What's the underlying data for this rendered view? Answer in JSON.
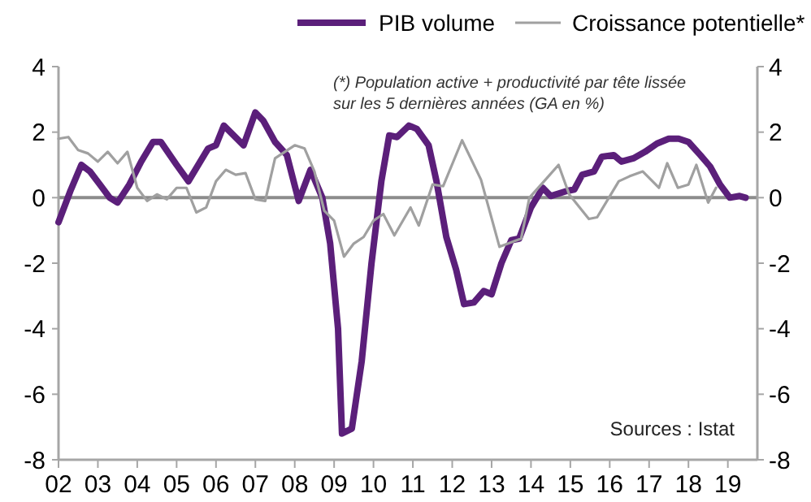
{
  "chart_data": {
    "type": "line",
    "x": [
      2002.0,
      2002.3,
      2002.58,
      2002.8,
      2003.05,
      2003.3,
      2003.5,
      2003.8,
      2004.1,
      2004.4,
      2004.6,
      2005.0,
      2005.3,
      2005.8,
      2006.0,
      2006.2,
      2006.7,
      2007.0,
      2007.2,
      2007.5,
      2007.8,
      2008.1,
      2008.4,
      2008.7,
      2008.9,
      2009.1,
      2009.2,
      2009.45,
      2009.7,
      2009.95,
      2010.2,
      2010.4,
      2010.6,
      2010.9,
      2011.1,
      2011.4,
      2011.6,
      2011.85,
      2012.1,
      2012.3,
      2012.55,
      2012.8,
      2013.0,
      2013.25,
      2013.5,
      2013.7,
      2014.0,
      2014.3,
      2014.5,
      2014.9,
      2015.1,
      2015.3,
      2015.6,
      2015.8,
      2016.1,
      2016.3,
      2016.6,
      2016.9,
      2017.2,
      2017.5,
      2017.75,
      2018.0,
      2018.3,
      2018.55,
      2018.8,
      2019.05,
      2019.3,
      2019.45
    ],
    "series": [
      {
        "name": "PIB volume",
        "color": "#5b1f7a",
        "values": [
          -0.75,
          0.2,
          1.0,
          0.8,
          0.4,
          0.0,
          -0.15,
          0.4,
          1.1,
          1.7,
          1.7,
          1.0,
          0.5,
          1.5,
          1.6,
          2.2,
          1.6,
          2.6,
          2.35,
          1.7,
          1.3,
          -0.1,
          0.85,
          0.0,
          -1.4,
          -4.0,
          -7.2,
          -7.05,
          -5.0,
          -2.0,
          0.5,
          1.9,
          1.85,
          2.2,
          2.1,
          1.6,
          0.5,
          -1.2,
          -2.2,
          -3.25,
          -3.2,
          -2.85,
          -2.95,
          -2.0,
          -1.3,
          -1.25,
          -0.3,
          0.3,
          0.05,
          0.2,
          0.25,
          0.7,
          0.8,
          1.25,
          1.3,
          1.1,
          1.2,
          1.4,
          1.65,
          1.8,
          1.8,
          1.7,
          1.3,
          0.95,
          0.4,
          0.0,
          0.05,
          0.0
        ]
      },
      {
        "name": "Croissance potentielle*",
        "color": "#a0a0a0",
        "x": [
          2002.0,
          2002.25,
          2002.5,
          2002.75,
          2003.0,
          2003.25,
          2003.5,
          2003.75,
          2004.0,
          2004.25,
          2004.5,
          2004.75,
          2005.0,
          2005.25,
          2005.5,
          2005.75,
          2006.0,
          2006.25,
          2006.5,
          2006.75,
          2007.0,
          2007.25,
          2007.5,
          2007.75,
          2008.0,
          2008.25,
          2008.5,
          2008.75,
          2009.0,
          2009.25,
          2009.5,
          2009.75,
          2010.0,
          2010.25,
          2010.53,
          2010.94,
          2011.15,
          2011.5,
          2011.77,
          2012.25,
          2012.73,
          2013.2,
          2013.75,
          2013.96,
          2014.37,
          2014.7,
          2014.97,
          2015.47,
          2015.68,
          2016.23,
          2016.5,
          2016.84,
          2017.25,
          2017.46,
          2017.73,
          2018.0,
          2018.2,
          2018.5,
          2018.7
        ],
        "values": [
          1.8,
          1.85,
          1.45,
          1.35,
          1.1,
          1.4,
          1.05,
          1.4,
          0.3,
          -0.1,
          0.1,
          -0.05,
          0.3,
          0.3,
          -0.45,
          -0.3,
          0.5,
          0.85,
          0.7,
          0.75,
          -0.05,
          -0.1,
          1.2,
          1.4,
          1.6,
          1.5,
          0.8,
          -0.4,
          -0.7,
          -1.8,
          -1.4,
          -1.2,
          -0.7,
          -0.5,
          -1.15,
          -0.3,
          -0.85,
          0.4,
          0.35,
          1.75,
          0.55,
          -1.5,
          -1.25,
          0.0,
          0.55,
          1.0,
          0.1,
          -0.65,
          -0.6,
          0.5,
          0.65,
          0.8,
          0.3,
          1.05,
          0.3,
          0.4,
          1.0,
          -0.15,
          0.3
        ]
      }
    ],
    "xlim": [
      2002,
      2019.75
    ],
    "xticks": [
      {
        "value": 2002,
        "label": "02"
      },
      {
        "value": 2003,
        "label": "03"
      },
      {
        "value": 2004,
        "label": "04"
      },
      {
        "value": 2005,
        "label": "05"
      },
      {
        "value": 2006,
        "label": "06"
      },
      {
        "value": 2007,
        "label": "07"
      },
      {
        "value": 2008,
        "label": "08"
      },
      {
        "value": 2009,
        "label": "09"
      },
      {
        "value": 2010,
        "label": "10"
      },
      {
        "value": 2011,
        "label": "11"
      },
      {
        "value": 2012,
        "label": "12"
      },
      {
        "value": 2013,
        "label": "13"
      },
      {
        "value": 2014,
        "label": "14"
      },
      {
        "value": 2015,
        "label": "15"
      },
      {
        "value": 2016,
        "label": "16"
      },
      {
        "value": 2017,
        "label": "17"
      },
      {
        "value": 2018,
        "label": "18"
      },
      {
        "value": 2019,
        "label": "19"
      }
    ],
    "ylim": [
      -8,
      4
    ],
    "yticks": [
      -8,
      -6,
      -4,
      -2,
      0,
      2,
      4
    ],
    "y2lim": [
      -8,
      4
    ],
    "y2ticks": [
      -8,
      -6,
      -4,
      -2,
      0,
      2,
      4
    ],
    "ref_lines": [
      {
        "axis": "y",
        "value": 0,
        "color": "#8c8c8c"
      }
    ],
    "legend": "top",
    "grid": false,
    "annotations": [
      "(*) Population active + productivité par tête lissée sur les 5 dernières années (GA en %)",
      "Sources : Istat"
    ]
  }
}
